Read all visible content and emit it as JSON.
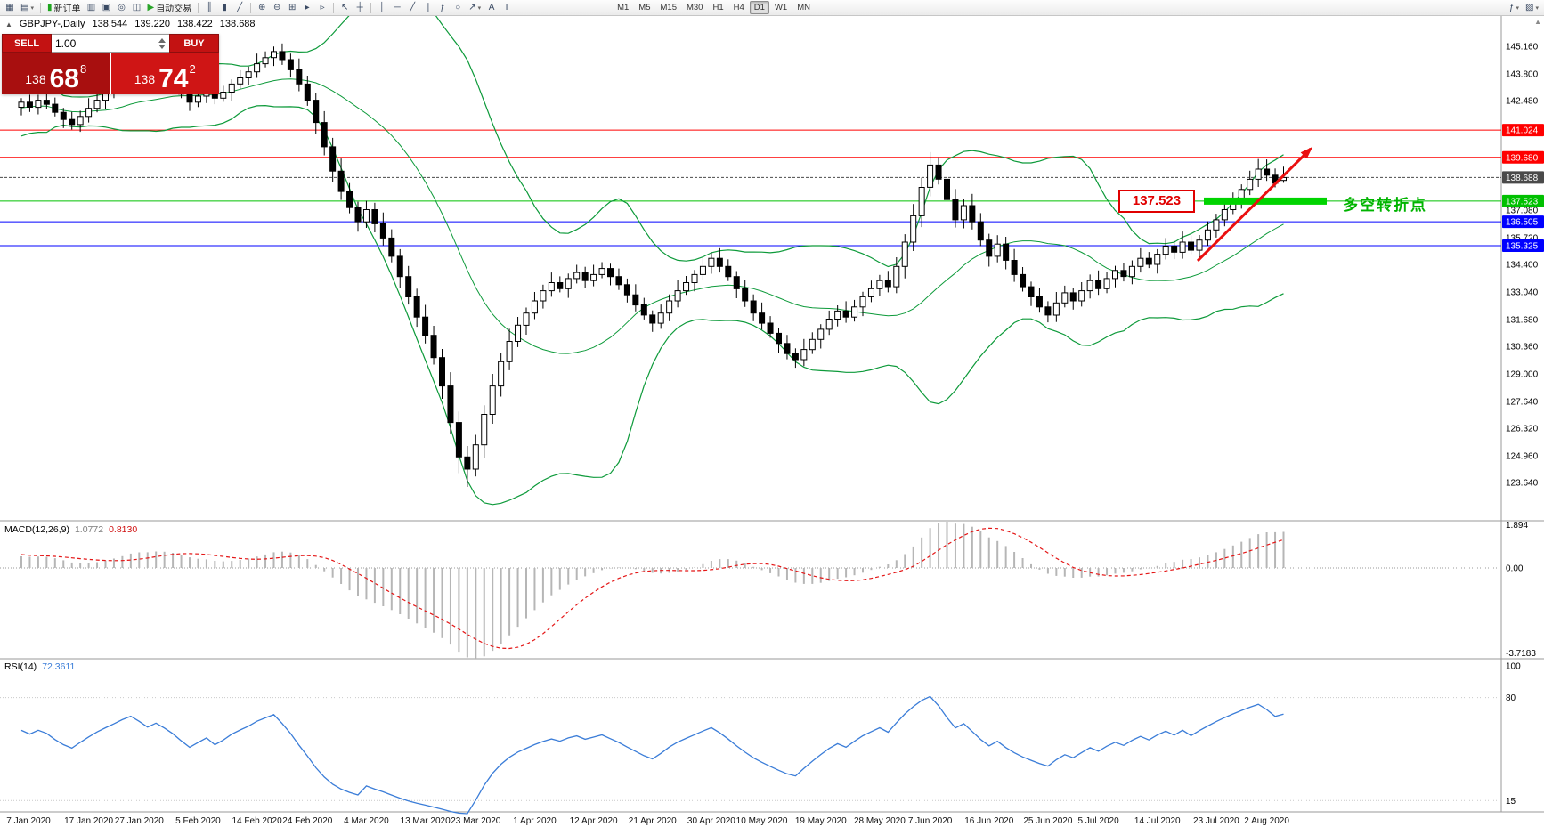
{
  "styles": {
    "accent_red": "#ff0000",
    "accent_blue": "#0000ff",
    "accent_green": "#00c000",
    "band": "#0d9a3a",
    "macd_hist": "#b6b6b6",
    "macd_signal": "#e41616",
    "rsi_line": "#3b7dd8",
    "arrow": "#ea1010",
    "highlight_bar": "#00d400",
    "bid_badge": "#4a4a4a",
    "candle_up": "#ffffff",
    "candle_down": "#000000",
    "wick": "#000000",
    "pane_border": "#9a9a9a"
  },
  "toolbar": {
    "groups": [
      [
        {
          "name": "new-chart-button",
          "glyph": "▦"
        },
        {
          "name": "chart-profiles-button",
          "glyph": "▤",
          "caret": true
        }
      ],
      [
        {
          "name": "new-order-button",
          "glyph": "▮",
          "glyph_color": "#1fa51f",
          "label": "新订单"
        },
        {
          "name": "market-watch-button",
          "glyph": "▥"
        },
        {
          "name": "data-window-button",
          "glyph": "▣"
        },
        {
          "name": "navigator-button",
          "glyph": "◎"
        },
        {
          "name": "terminal-button",
          "glyph": "◫"
        },
        {
          "name": "autotrading-button",
          "glyph": "▶",
          "glyph_color": "#2aa52a",
          "label": "自动交易"
        }
      ],
      [
        {
          "name": "bar-chart-button",
          "glyph": "║"
        },
        {
          "name": "candlestick-chart-button",
          "glyph": "▮"
        },
        {
          "name": "line-chart-button",
          "glyph": "╱"
        }
      ],
      [
        {
          "name": "zoom-in-button",
          "glyph": "⊕"
        },
        {
          "name": "zoom-out-button",
          "glyph": "⊖"
        },
        {
          "name": "tile-windows-button",
          "glyph": "⊞"
        },
        {
          "name": "auto-scroll-button",
          "glyph": "▸"
        },
        {
          "name": "chart-shift-button",
          "glyph": "▹"
        }
      ],
      [
        {
          "name": "cursor-button",
          "glyph": "↖"
        },
        {
          "name": "crosshair-button",
          "glyph": "┼"
        }
      ],
      [
        {
          "name": "vertical-line-button",
          "glyph": "│"
        },
        {
          "name": "horizontal-line-button",
          "glyph": "─"
        },
        {
          "name": "trendline-button",
          "glyph": "╱"
        },
        {
          "name": "channel-button",
          "glyph": "∥"
        },
        {
          "name": "fibonacci-button",
          "glyph": "ƒ"
        },
        {
          "name": "shapes-button",
          "glyph": "○"
        },
        {
          "name": "arrows-button",
          "glyph": "↗",
          "caret": true
        },
        {
          "name": "text-button",
          "glyph": "A"
        },
        {
          "name": "text-label-button",
          "glyph": "T"
        }
      ]
    ],
    "timeframes": [
      "M1",
      "M5",
      "M15",
      "M30",
      "H1",
      "H4",
      "D1",
      "W1",
      "MN"
    ],
    "active_timeframe": "D1",
    "icons_right": [
      {
        "name": "indicators-button",
        "glyph": "ƒ",
        "caret": true
      },
      {
        "name": "templates-button",
        "glyph": "▨",
        "caret": true
      }
    ]
  },
  "symbol_header": {
    "collapse_glyph": "▲",
    "symbol": "GBPJPY-,Daily",
    "open": "138.544",
    "high": "139.220",
    "low": "138.422",
    "close": "138.688"
  },
  "trade_widget": {
    "sell_label": "SELL",
    "buy_label": "BUY",
    "volume": "1.00",
    "sell_small": "138",
    "sell_big": "68",
    "sell_sup": "8",
    "buy_small": "138",
    "buy_big": "74",
    "buy_sup": "2"
  },
  "annotations": {
    "level_label": "137.523",
    "note": "多空转折点"
  },
  "misc": {
    "scroll_up_glyph": "▲"
  },
  "levels": [
    {
      "price": 141.024,
      "label": "141.024",
      "color": "#ff0000",
      "type": "line"
    },
    {
      "price": 139.68,
      "label": "139.680",
      "color": "#ff0000",
      "type": "line"
    },
    {
      "price": 138.688,
      "label": "138.688",
      "color": "#4a4a4a",
      "type": "bid"
    },
    {
      "price": 137.523,
      "label": "137.523",
      "color": "#00c000",
      "type": "line"
    },
    {
      "price": 136.505,
      "label": "136.505",
      "color": "#0000ff",
      "type": "line"
    },
    {
      "price": 135.325,
      "label": "135.325",
      "color": "#0000ff",
      "type": "line"
    }
  ],
  "macd": {
    "name": "MACD(12,26,9)",
    "value": "1.0772",
    "signal": "0.8130",
    "axis_max": "1.894",
    "axis_zero": "0.00",
    "axis_min": "-3.7183"
  },
  "rsi": {
    "name": "RSI(14)",
    "value": "72.3611",
    "axis": [
      {
        "v": 100,
        "label": "100"
      },
      {
        "v": 80,
        "label": "80"
      },
      {
        "v": 15,
        "label": "15"
      }
    ]
  },
  "chart_data": {
    "type": "candlestick",
    "title": "GBPJPY-,Daily",
    "symbol": "GBPJPY",
    "period": "Daily",
    "ohlc_current": {
      "open": 138.544,
      "high": 139.22,
      "low": 138.422,
      "close": 138.688
    },
    "bid": 138.688,
    "ask": 138.742,
    "ylim": [
      121.8,
      146.6
    ],
    "price_axis": [
      145.16,
      143.8,
      142.48,
      137.08,
      135.72,
      134.4,
      133.04,
      131.68,
      130.36,
      129.0,
      127.64,
      126.32,
      124.96,
      123.64
    ],
    "date_labels": [
      {
        "text": "7 Jan 2020",
        "day": 0
      },
      {
        "text": "17 Jan 2020",
        "day": 8
      },
      {
        "text": "27 Jan 2020",
        "day": 14
      },
      {
        "text": "5 Feb 2020",
        "day": 21
      },
      {
        "text": "14 Feb 2020",
        "day": 28
      },
      {
        "text": "24 Feb 2020",
        "day": 34
      },
      {
        "text": "4 Mar 2020",
        "day": 41
      },
      {
        "text": "13 Mar 2020",
        "day": 48
      },
      {
        "text": "23 Mar 2020",
        "day": 54
      },
      {
        "text": "1 Apr 2020",
        "day": 61
      },
      {
        "text": "12 Apr 2020",
        "day": 68
      },
      {
        "text": "21 Apr 2020",
        "day": 75
      },
      {
        "text": "30 Apr 2020",
        "day": 82
      },
      {
        "text": "10 May 2020",
        "day": 88
      },
      {
        "text": "19 May 2020",
        "day": 95
      },
      {
        "text": "28 May 2020",
        "day": 102
      },
      {
        "text": "7 Jun 2020",
        "day": 108
      },
      {
        "text": "16 Jun 2020",
        "day": 115
      },
      {
        "text": "25 Jun 2020",
        "day": 122
      },
      {
        "text": "5 Jul 2020",
        "day": 128
      },
      {
        "text": "14 Jul 2020",
        "day": 135
      },
      {
        "text": "23 Jul 2020",
        "day": 142
      },
      {
        "text": "2 Aug 2020",
        "day": 148
      }
    ],
    "pre_closes": [
      139.2,
      139.6,
      140.1,
      140.5,
      140.2,
      139.8,
      140.3,
      140.9,
      141.4,
      141.0,
      140.6,
      141.1,
      141.7,
      142.4,
      144.2,
      143.4,
      142.6,
      142.0,
      141.5,
      141.9,
      142.3,
      142.0,
      141.6,
      141.2,
      141.7,
      142.1,
      142.4,
      142.0,
      141.7,
      142.2
    ],
    "closes": [
      142.4,
      142.15,
      142.5,
      142.3,
      141.9,
      141.55,
      141.3,
      141.7,
      142.1,
      142.5,
      142.85,
      143.2,
      143.6,
      143.95,
      143.7,
      143.4,
      143.75,
      143.5,
      143.2,
      142.8,
      142.4,
      142.7,
      143.0,
      142.6,
      142.9,
      143.3,
      143.6,
      143.9,
      144.3,
      144.6,
      144.9,
      144.5,
      144.0,
      143.3,
      142.5,
      141.4,
      140.2,
      139.0,
      138.0,
      137.2,
      136.5,
      137.1,
      136.4,
      135.7,
      134.8,
      133.8,
      132.8,
      131.8,
      130.9,
      129.8,
      128.4,
      126.6,
      124.9,
      124.3,
      125.5,
      127.0,
      128.4,
      129.6,
      130.6,
      131.4,
      132.0,
      132.6,
      133.1,
      133.5,
      133.2,
      133.7,
      134.0,
      133.6,
      133.9,
      134.2,
      133.8,
      133.4,
      132.9,
      132.4,
      131.9,
      131.5,
      132.0,
      132.6,
      133.1,
      133.5,
      133.9,
      134.3,
      134.7,
      134.3,
      133.8,
      133.2,
      132.6,
      132.0,
      131.5,
      131.0,
      130.5,
      130.0,
      129.7,
      130.2,
      130.7,
      131.2,
      131.7,
      132.1,
      131.8,
      132.3,
      132.8,
      133.2,
      133.6,
      133.3,
      134.3,
      135.5,
      136.8,
      138.2,
      139.3,
      138.6,
      137.6,
      136.6,
      137.3,
      136.5,
      135.6,
      134.8,
      135.4,
      134.6,
      133.9,
      133.3,
      132.8,
      132.3,
      131.9,
      132.5,
      133.0,
      132.6,
      133.1,
      133.6,
      133.2,
      133.7,
      134.1,
      133.8,
      134.3,
      134.7,
      134.4,
      134.9,
      135.3,
      135.0,
      135.5,
      135.1,
      135.6,
      136.1,
      136.6,
      137.1,
      137.6,
      138.1,
      138.6,
      139.1,
      138.8,
      138.4,
      138.69
    ],
    "extra_high": {
      "12": 144.25,
      "30": 145.15,
      "108": 139.75,
      "147": 139.6
    },
    "extra_low": {
      "6": 141.05,
      "52": 124.1,
      "53": 123.42,
      "92": 129.3
    },
    "indicators": [
      {
        "name": "Bollinger Bands",
        "period": 20,
        "deviation": 2
      },
      {
        "name": "MACD",
        "params": "12,26,9",
        "value": 1.0772,
        "signal": 0.813,
        "axis_max": 1.894,
        "axis_min": -3.7183
      },
      {
        "name": "RSI",
        "period": 14,
        "value": 72.3611,
        "axis_labels": [
          100,
          80,
          15
        ]
      }
    ]
  }
}
